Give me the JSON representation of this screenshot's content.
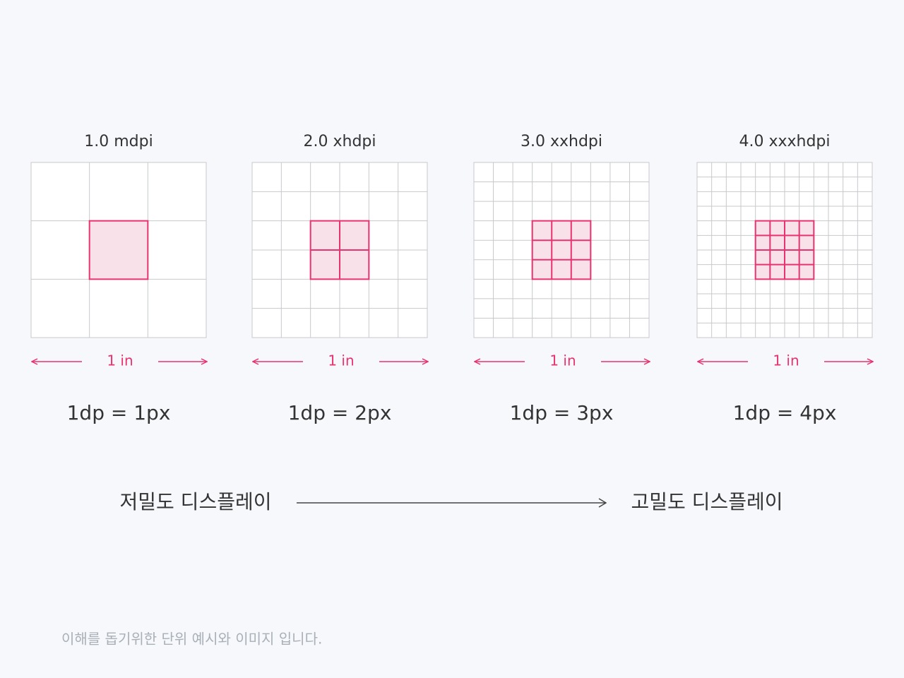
{
  "panels": [
    {
      "title": "1.0 mdpi",
      "measure": "1 in",
      "equation": "1dp = 1px"
    },
    {
      "title": "2.0 xhdpi",
      "measure": "1 in",
      "equation": "1dp = 2px"
    },
    {
      "title": "3.0 xxhdpi",
      "measure": "1 in",
      "equation": "1dp = 3px"
    },
    {
      "title": "4.0 xxxhdpi",
      "measure": "1 in",
      "equation": "1dp = 4px"
    }
  ],
  "scale": {
    "low": "저밀도 디스플레이",
    "high": "고밀도 디스플레이"
  },
  "footnote": "이해를 돕기위한 단위 예시와 이미지 입니다."
}
